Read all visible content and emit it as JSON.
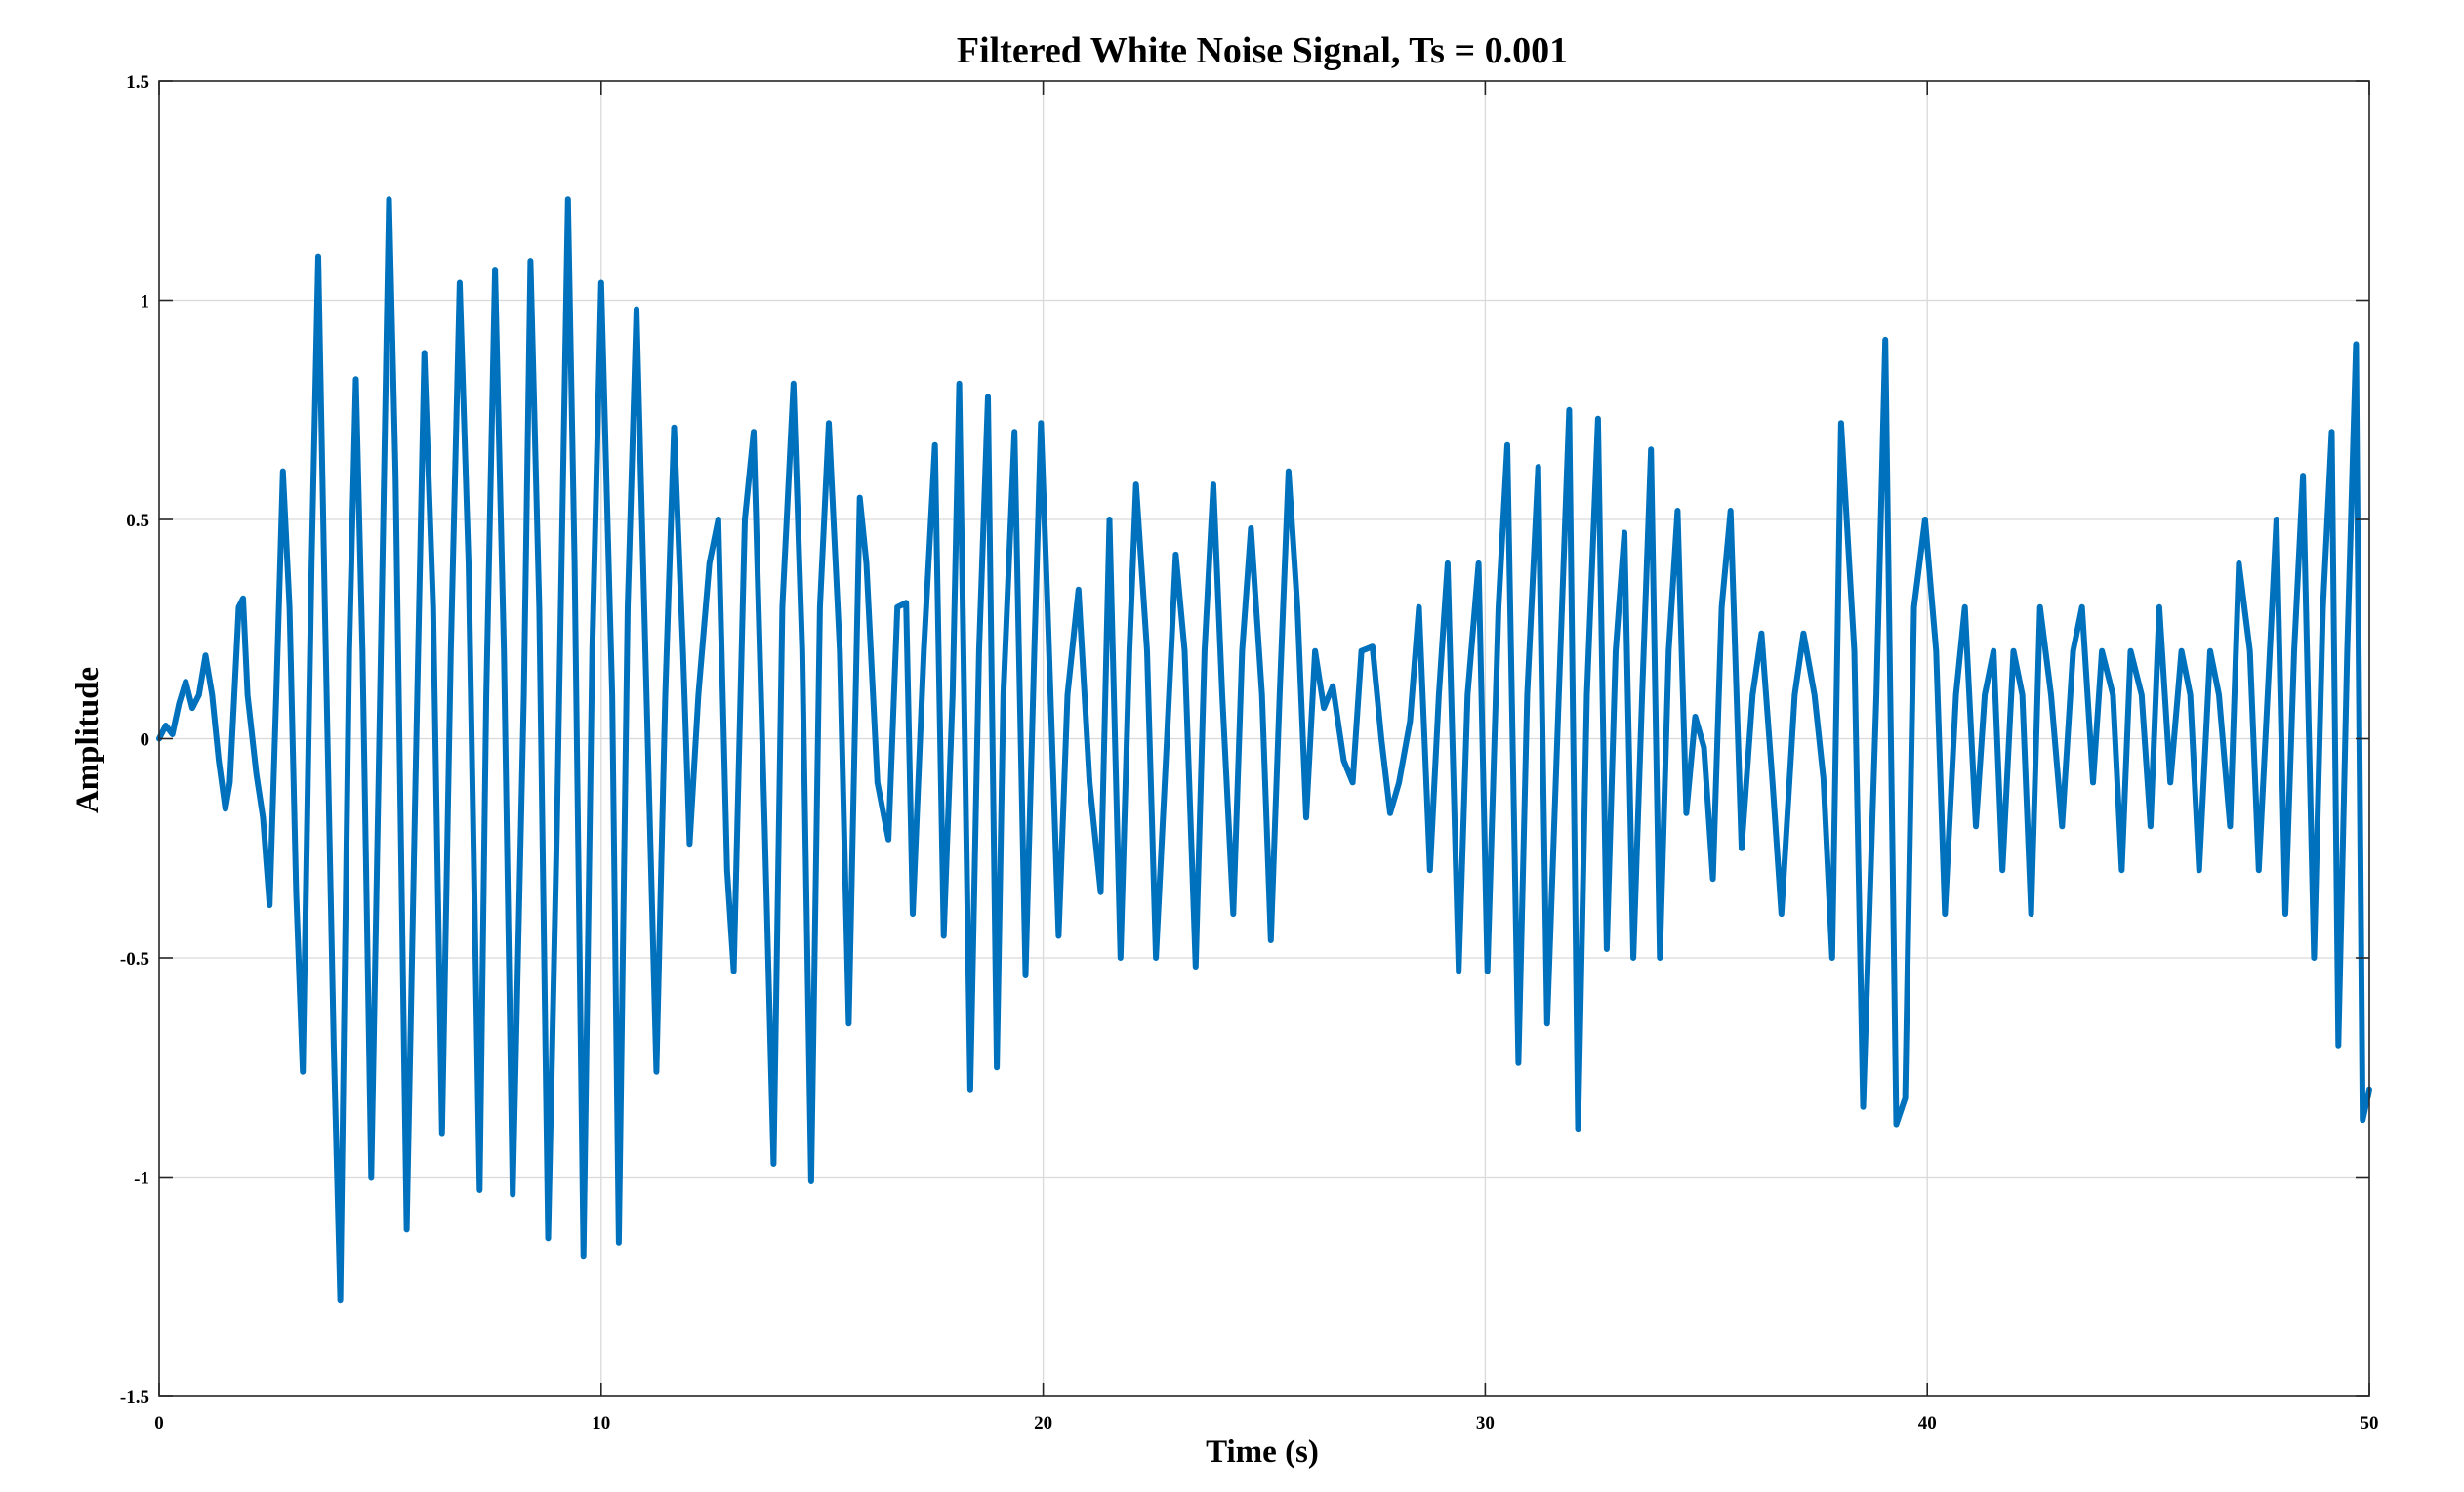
{
  "chart_data": {
    "type": "line",
    "title": "Filtered White Noise Signal, Ts = 0.001",
    "xlabel": "Time (s)",
    "ylabel": "Amplitude",
    "xlim": [
      0,
      50
    ],
    "ylim": [
      -1.5,
      1.5
    ],
    "x_ticks": [
      0,
      10,
      20,
      30,
      40,
      50
    ],
    "x_tick_labels": [
      "0",
      "10",
      "20",
      "30",
      "40",
      "50"
    ],
    "y_ticks": [
      1.5,
      1,
      0.5,
      0,
      -0.5,
      -1,
      -1.5
    ],
    "y_tick_labels": [
      "1.5",
      "1",
      "0.5",
      "0",
      "-0.5",
      "-1",
      "-1.5"
    ],
    "grid": true,
    "line_color": "#0072bd",
    "series": [
      {
        "x": [
          0,
          0.15,
          0.3,
          0.45,
          0.6,
          0.75,
          0.9,
          1.05,
          1.2,
          1.35,
          1.5,
          1.6,
          1.7,
          1.8,
          1.9,
          2.0,
          2.2,
          2.35,
          2.5,
          2.65,
          2.8,
          2.95,
          3.1,
          3.25,
          3.45,
          3.6,
          3.75,
          3.95,
          4.1,
          4.3,
          4.45,
          4.6,
          4.8,
          5.0,
          5.2,
          5.35,
          5.6,
          5.8,
          6.0,
          6.2,
          6.4,
          6.6,
          6.8,
          7.0,
          7.25,
          7.4,
          7.6,
          7.8,
          8.0,
          8.25,
          8.4,
          8.6,
          8.8,
          9.0,
          9.25,
          9.4,
          9.6,
          9.8,
          10.0,
          10.25,
          10.4,
          10.6,
          10.8,
          11.0,
          11.25,
          11.45,
          11.65,
          11.85,
          12.0,
          12.2,
          12.45,
          12.65,
          12.85,
          13.0,
          13.25,
          13.45,
          13.7,
          13.9,
          14.1,
          14.35,
          14.55,
          14.75,
          14.95,
          15.15,
          15.4,
          15.6,
          15.85,
          16.0,
          16.25,
          16.5,
          16.7,
          16.9,
          17.05,
          17.3,
          17.55,
          17.75,
          17.95,
          18.1,
          18.35,
          18.55,
          18.75,
          18.95,
          19.1,
          19.35,
          19.6,
          19.8,
          19.95,
          20.1,
          20.35,
          20.55,
          20.8,
          21.05,
          21.3,
          21.5,
          21.75,
          21.95,
          22.1,
          22.35,
          22.55,
          22.8,
          23.0,
          23.2,
          23.45,
          23.65,
          23.85,
          24.05,
          24.3,
          24.5,
          24.7,
          24.95,
          25.15,
          25.35,
          25.55,
          25.75,
          25.95,
          26.15,
          26.35,
          26.55,
          26.8,
          27.0,
          27.2,
          27.45,
          27.65,
          27.85,
          28.05,
          28.3,
          28.5,
          28.75,
          28.95,
          29.15,
          29.4,
          29.6,
          29.85,
          30.05,
          30.3,
          30.5,
          30.75,
          30.95,
          31.2,
          31.4,
          31.7,
          31.9,
          32.1,
          32.3,
          32.55,
          32.75,
          32.95,
          33.15,
          33.35,
          33.55,
          33.75,
          33.95,
          34.15,
          34.35,
          34.55,
          34.75,
          34.95,
          35.15,
          35.35,
          35.55,
          35.8,
          36.05,
          36.25,
          36.5,
          36.7,
          37.0,
          37.2,
          37.45,
          37.65,
          37.85,
          38.05,
          38.35,
          38.55,
          38.85,
          39.05,
          39.3,
          39.5,
          39.7,
          39.95,
          40.2,
          40.4,
          40.65,
          40.85,
          41.1,
          41.3,
          41.5,
          41.7,
          41.95,
          42.15,
          42.35,
          42.55,
          42.8,
          43.05,
          43.3,
          43.5,
          43.75,
          43.95,
          44.2,
          44.4,
          44.6,
          44.85,
          45.05,
          45.25,
          45.5,
          45.75,
          45.95,
          46.15,
          46.4,
          46.6,
          46.85,
          47.05,
          47.3,
          47.5,
          47.7,
          47.9,
          48.1,
          48.3,
          48.5,
          48.75,
          48.95,
          49.15,
          49.3,
          49.5,
          49.7,
          49.85,
          50.0
        ],
        "y": [
          0,
          0.03,
          0.01,
          0.08,
          0.13,
          0.07,
          0.1,
          0.19,
          0.1,
          -0.05,
          -0.16,
          -0.1,
          0.1,
          0.3,
          0.32,
          0.1,
          -0.08,
          -0.18,
          -0.38,
          0.1,
          0.61,
          0.3,
          -0.35,
          -0.76,
          0.4,
          1.1,
          0.3,
          -0.7,
          -1.28,
          0.2,
          0.82,
          0.2,
          -1.0,
          0.1,
          1.23,
          0.6,
          -1.12,
          -0.1,
          0.88,
          0.3,
          -0.9,
          0.2,
          1.04,
          0.4,
          -1.03,
          0.1,
          1.07,
          0.2,
          -1.04,
          0.1,
          1.09,
          0.3,
          -1.14,
          -0.2,
          1.23,
          0.4,
          -1.18,
          0.2,
          1.04,
          0.1,
          -1.15,
          0.3,
          0.98,
          0.2,
          -0.76,
          0.1,
          0.71,
          0.2,
          -0.24,
          0.1,
          0.4,
          0.5,
          -0.3,
          -0.53,
          0.5,
          0.7,
          -0.2,
          -0.97,
          0.3,
          0.81,
          0.2,
          -1.01,
          0.3,
          0.72,
          0.2,
          -0.65,
          0.55,
          0.4,
          -0.1,
          -0.23,
          0.3,
          0.31,
          -0.4,
          0.2,
          0.67,
          -0.45,
          0.1,
          0.81,
          -0.8,
          0.2,
          0.78,
          -0.75,
          0.1,
          0.7,
          -0.54,
          0.2,
          0.72,
          0.3,
          -0.45,
          0.1,
          0.34,
          -0.1,
          -0.35,
          0.5,
          -0.5,
          0.2,
          0.58,
          0.2,
          -0.5,
          0.0,
          0.42,
          0.2,
          -0.52,
          0.2,
          0.58,
          0.1,
          -0.4,
          0.2,
          0.48,
          0.1,
          -0.46,
          0.1,
          0.61,
          0.3,
          -0.18,
          0.2,
          0.07,
          0.12,
          -0.05,
          -0.1,
          0.2,
          0.21,
          0.0,
          -0.17,
          -0.1,
          0.04,
          0.3,
          -0.3,
          0.1,
          0.4,
          -0.53,
          0.1,
          0.4,
          -0.53,
          0.3,
          0.67,
          -0.74,
          0.1,
          0.62,
          -0.65,
          0.2,
          0.75,
          -0.89,
          0.1,
          0.73,
          -0.48,
          0.2,
          0.47,
          -0.5,
          0.1,
          0.66,
          -0.5,
          0.2,
          0.52,
          -0.17,
          0.05,
          -0.02,
          -0.32,
          0.3,
          0.52,
          -0.25,
          0.1,
          0.24,
          -0.1,
          -0.4,
          0.1,
          0.24,
          0.1,
          -0.09,
          -0.5,
          0.72,
          0.2,
          -0.84,
          0.1,
          0.91,
          -0.88,
          -0.82,
          0.3,
          0.5,
          0.2,
          -0.4,
          0.1,
          0.3,
          -0.2,
          0.1,
          0.2,
          -0.3,
          0.2,
          0.1,
          -0.4,
          0.3,
          0.1,
          -0.2,
          0.2,
          0.3,
          -0.1,
          0.2,
          0.1,
          -0.3,
          0.2,
          0.1,
          -0.2,
          0.3,
          -0.1,
          0.2,
          0.1,
          -0.3,
          0.2,
          0.1,
          -0.2,
          0.4,
          0.2,
          -0.3,
          0.1,
          0.5,
          -0.4,
          0.2,
          0.6,
          -0.5,
          0.3,
          0.7,
          -0.7,
          0.2,
          0.9,
          -0.87,
          -0.8
        ]
      }
    ]
  }
}
